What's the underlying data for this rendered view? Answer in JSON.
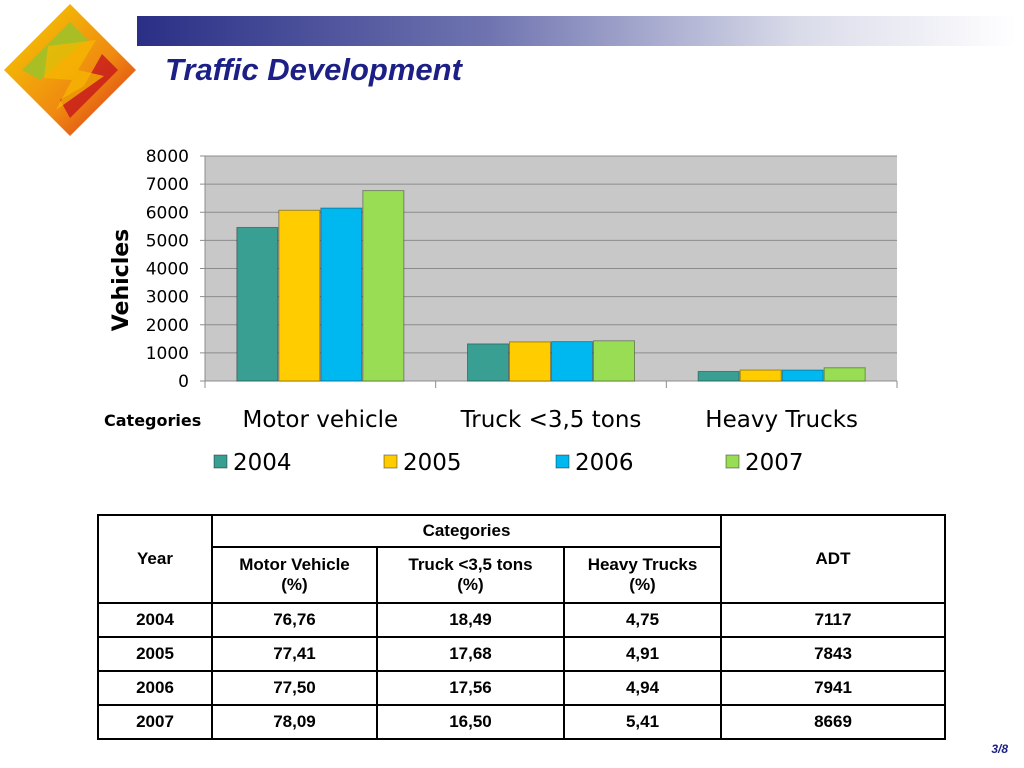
{
  "slide": {
    "title": "Traffic Development",
    "page": "3/8"
  },
  "colors": {
    "title": "#1c1f86",
    "plot_background": "#c8c8c8",
    "series": [
      "#3a9f93",
      "#ffcc00",
      "#00b8f0",
      "#99dd55"
    ]
  },
  "chart_data": {
    "type": "bar",
    "title": "",
    "xlabel": "Categories",
    "ylabel": "Vehicles",
    "categories": [
      "Motor vehicle",
      "Truck <3,5 tons",
      "Heavy Trucks"
    ],
    "series": [
      {
        "name": "2004",
        "values": [
          5460,
          1320,
          340
        ]
      },
      {
        "name": "2005",
        "values": [
          6070,
          1390,
          390
        ]
      },
      {
        "name": "2006",
        "values": [
          6150,
          1400,
          390
        ]
      },
      {
        "name": "2007",
        "values": [
          6770,
          1430,
          470
        ]
      }
    ],
    "ylim": [
      0,
      8000
    ],
    "yticks": [
      0,
      1000,
      2000,
      3000,
      4000,
      5000,
      6000,
      7000,
      8000
    ],
    "grid": true,
    "legend_position": "bottom"
  },
  "table": {
    "year_header": "Year",
    "categories_header": "Categories",
    "adt_header": "ADT",
    "sub_headers": [
      {
        "name": "Motor Vehicle",
        "unit": "(%)"
      },
      {
        "name": "Truck <3,5 tons",
        "unit": "(%)"
      },
      {
        "name": "Heavy Trucks",
        "unit": "(%)"
      }
    ],
    "rows": [
      [
        "2004",
        "76,76",
        "18,49",
        "4,75",
        "7117"
      ],
      [
        "2005",
        "77,41",
        "17,68",
        "4,91",
        "7843"
      ],
      [
        "2006",
        "77,50",
        "17,56",
        "4,94",
        "7941"
      ],
      [
        "2007",
        "78,09",
        "16,50",
        "5,41",
        "8669"
      ]
    ]
  }
}
